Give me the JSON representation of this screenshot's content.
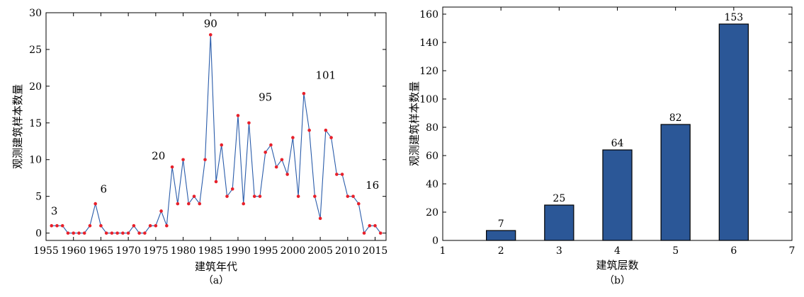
{
  "colors": {
    "line": "#2a5caa",
    "marker": "#e8202a",
    "bar_fill": "#2b5797",
    "bar_stroke": "#000000",
    "axis": "#000000"
  },
  "chart_data": [
    {
      "type": "line",
      "caption": "（a）",
      "xlabel": "建筑年代",
      "ylabel": "观测建筑样本数量",
      "xlim": [
        1955,
        2017
      ],
      "ylim": [
        -1,
        30
      ],
      "xticks": [
        1955,
        1960,
        1965,
        1970,
        1975,
        1980,
        1985,
        1990,
        1995,
        2000,
        2005,
        2010,
        2015
      ],
      "yticks": [
        0,
        5,
        10,
        15,
        20,
        25,
        30
      ],
      "x": [
        1956,
        1957,
        1958,
        1959,
        1960,
        1961,
        1962,
        1963,
        1964,
        1965,
        1966,
        1967,
        1968,
        1969,
        1970,
        1971,
        1972,
        1973,
        1974,
        1975,
        1976,
        1977,
        1978,
        1979,
        1980,
        1981,
        1982,
        1983,
        1984,
        1985,
        1986,
        1987,
        1988,
        1989,
        1990,
        1991,
        1992,
        1993,
        1994,
        1995,
        1996,
        1997,
        1998,
        1999,
        2000,
        2001,
        2002,
        2003,
        2004,
        2005,
        2006,
        2007,
        2008,
        2009,
        2010,
        2011,
        2012,
        2013,
        2014,
        2015,
        2016
      ],
      "y": [
        1,
        1,
        1,
        0,
        0,
        0,
        0,
        1,
        4,
        1,
        0,
        0,
        0,
        0,
        0,
        1,
        0,
        0,
        1,
        1,
        3,
        1,
        9,
        4,
        10,
        4,
        5,
        4,
        10,
        27,
        7,
        12,
        5,
        6,
        16,
        4,
        15,
        5,
        5,
        11,
        12,
        9,
        10,
        8,
        13,
        5,
        19,
        14,
        5,
        2,
        14,
        13,
        8,
        8,
        5,
        5,
        4,
        0,
        1,
        1,
        0
      ],
      "period_labels": [
        {
          "text": "3",
          "x": 1956.5,
          "y": 3
        },
        {
          "text": "6",
          "x": 1965.5,
          "y": 6
        },
        {
          "text": "20",
          "x": 1975.5,
          "y": 10.5
        },
        {
          "text": "90",
          "x": 1985,
          "y": 28.5
        },
        {
          "text": "95",
          "x": 1995,
          "y": 18.5
        },
        {
          "text": "101",
          "x": 2006,
          "y": 21.5
        },
        {
          "text": "16",
          "x": 2014.5,
          "y": 6.5
        }
      ]
    },
    {
      "type": "bar",
      "caption": "（b）",
      "xlabel": "建筑层数",
      "ylabel": "观测建筑样本数量",
      "xlim": [
        1,
        7
      ],
      "ylim": [
        0,
        165
      ],
      "xticks": [
        1,
        2,
        3,
        4,
        5,
        6,
        7
      ],
      "yticks": [
        0,
        20,
        40,
        60,
        80,
        100,
        120,
        140,
        160
      ],
      "categories": [
        2,
        3,
        4,
        5,
        6
      ],
      "values": [
        7,
        25,
        64,
        82,
        153
      ]
    }
  ]
}
